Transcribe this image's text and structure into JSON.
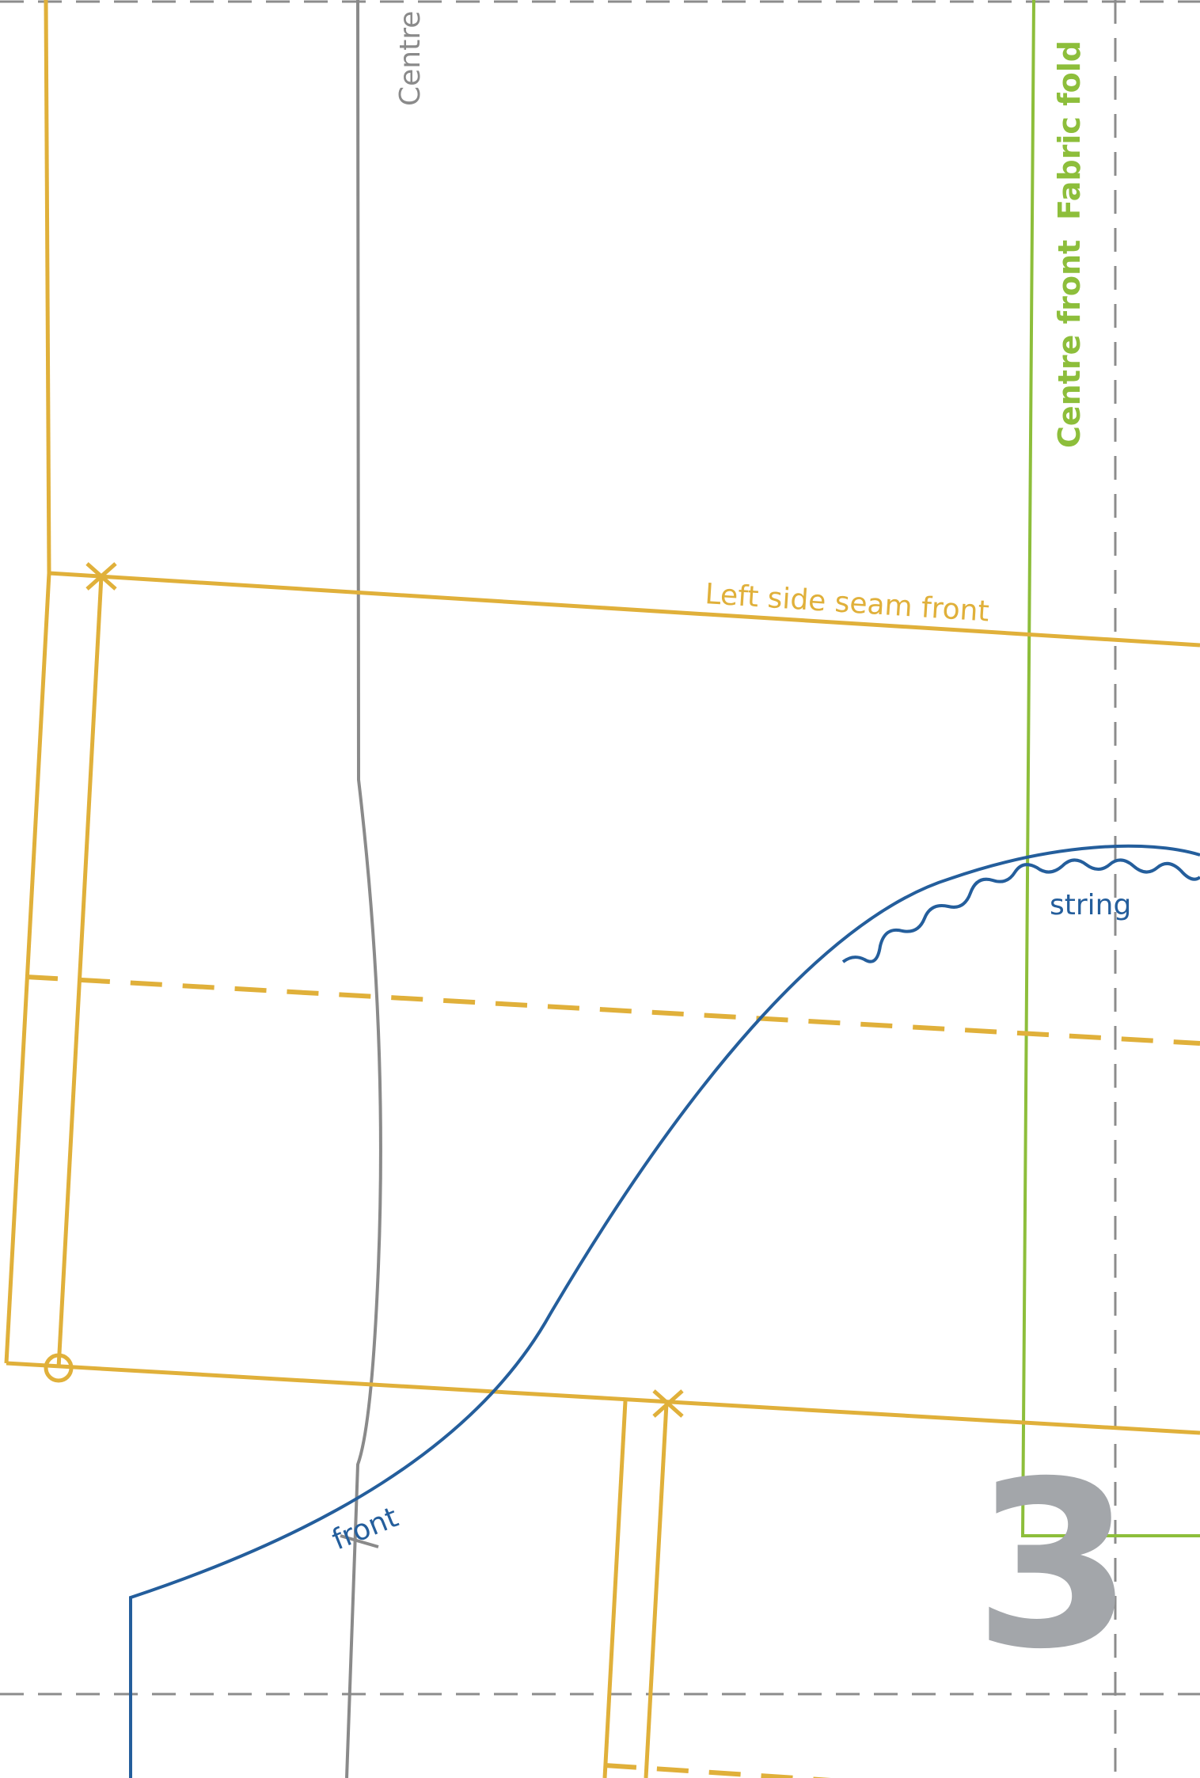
{
  "colors": {
    "yellow": "#e0b03a",
    "green": "#8dbe3b",
    "blue": "#245e9c",
    "grey": "#8a8a8a",
    "dash_grey": "#8c8c8c",
    "page_number": "#a3a6aa"
  },
  "labels": {
    "centre_back": "Centre",
    "fabric_fold": "Fabric fold",
    "centre_front": "Centre front",
    "left_side_seam_front": "Left side seam front",
    "string": "string",
    "front": "front"
  },
  "page_number": "3"
}
